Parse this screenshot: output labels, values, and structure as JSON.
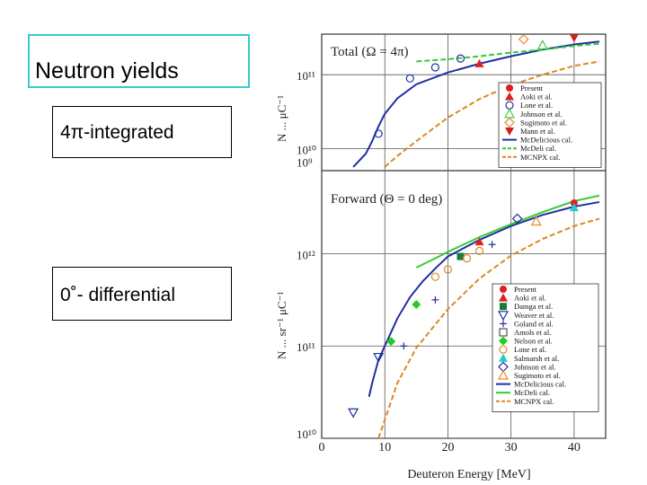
{
  "slide": {
    "title": "Neutron yields",
    "subtitle_top": "4π-integrated",
    "subtitle_bottom": "0˚- differential"
  },
  "colors": {
    "title_border": "#33cccc",
    "present": "#e02020",
    "aoki": "#e02020",
    "damga": "#1a7a3a",
    "johnson": "#44cc44",
    "sugimoto": "#ee8822",
    "mann": "#cc2222",
    "nelson": "#22cc22",
    "salmarsh": "#22cccc",
    "mcdelicious": "#1f2fa0",
    "mcdeli": "#33cc33",
    "mcnpx": "#dd8822"
  },
  "chart_data": [
    {
      "type": "line",
      "title": "Total (Ω = 4π)",
      "ylabel": "N ... μC⁻¹",
      "xlim": [
        0,
        45
      ],
      "ylim_log10": [
        9.7,
        11.55
      ],
      "y_tick_labels": [
        "10¹¹",
        "10¹⁰"
      ],
      "x_tick_labels": [
        "0",
        "10",
        "20",
        "30",
        "40"
      ],
      "legend_position": "right",
      "legend": [
        "Present",
        "Aoki et al.",
        "Lone et al.",
        "Johnson et al.",
        "Sugimoto et al.",
        "Mann et al.",
        "McDelicious cal.",
        "McDeli cal.",
        "MCNPX cal."
      ],
      "series": [
        {
          "name": "McDelicious cal.",
          "style": "solid",
          "color_key": "mcdelicious",
          "x": [
            5,
            7,
            8,
            9,
            10,
            12,
            15,
            20,
            25,
            30,
            35,
            40,
            44
          ],
          "y": [
            9.75,
            9.93,
            10.1,
            10.3,
            10.47,
            10.68,
            10.87,
            11.03,
            11.15,
            11.25,
            11.34,
            11.41,
            11.45
          ]
        },
        {
          "name": "McDeli cal.",
          "style": "dashed",
          "color_key": "mcdeli",
          "x": [
            15,
            20,
            25,
            30,
            35,
            40,
            44
          ],
          "y": [
            11.18,
            11.21,
            11.25,
            11.3,
            11.34,
            11.39,
            11.42
          ]
        },
        {
          "name": "MCNPX cal.",
          "style": "dashed",
          "color_key": "mcnpx",
          "x": [
            10,
            12,
            15,
            20,
            25,
            30,
            35,
            40,
            44
          ],
          "y": [
            9.75,
            9.9,
            10.1,
            10.42,
            10.67,
            10.86,
            11.0,
            11.12,
            11.18
          ]
        }
      ],
      "markers": [
        {
          "name": "Aoki et al.",
          "shape": "triangle",
          "color_key": "aoki",
          "x": [
            25
          ],
          "y": [
            11.15
          ]
        },
        {
          "name": "Lone et al.",
          "shape": "circle-open",
          "color_key": "mcdelicious",
          "x": [
            9,
            14,
            18,
            22
          ],
          "y": [
            10.2,
            10.95,
            11.1,
            11.22
          ]
        },
        {
          "name": "Johnson et al.",
          "shape": "triangle-open",
          "color_key": "johnson",
          "x": [
            35
          ],
          "y": [
            11.4
          ]
        },
        {
          "name": "Sugimoto et al.",
          "shape": "diamond-open",
          "color_key": "sugimoto",
          "x": [
            32
          ],
          "y": [
            11.48
          ]
        },
        {
          "name": "Mann et al.",
          "shape": "triangle-down",
          "color_key": "mann",
          "x": [
            40
          ],
          "y": [
            11.5
          ]
        }
      ]
    },
    {
      "type": "line",
      "title": "Forward (Θ = 0 deg)",
      "ylabel": "N ... sr⁻¹ μC⁻¹",
      "xlabel": "Deuteron Energy [MeV]",
      "xlim": [
        0,
        45
      ],
      "ylim_log10": [
        9,
        11.9
      ],
      "y_tick_labels": [
        "10¹²",
        "10¹¹",
        "10¹⁰",
        "10⁹"
      ],
      "x_tick_labels": [
        "0",
        "10",
        "20",
        "30",
        "40"
      ],
      "legend_position": "bottom-right",
      "legend": [
        "Present",
        "Aoki et al.",
        "Damga et al.",
        "Weaver et al.",
        "Goland et al.",
        "Amols et al.",
        "Nelson et al.",
        "Lone et al.",
        "Salmarsh et al.",
        "Johnson et al.",
        "Sugimoto et al.",
        "McDelicious cal.",
        "McDeli cal.",
        "MCNPX cal."
      ],
      "series": [
        {
          "name": "McDelicious cal.",
          "style": "solid",
          "color_key": "mcdelicious",
          "x": [
            7.5,
            8,
            9,
            10,
            12,
            14,
            16,
            18,
            20,
            25,
            30,
            35,
            40,
            44
          ],
          "y": [
            9.45,
            9.6,
            9.85,
            10.0,
            10.3,
            10.53,
            10.7,
            10.84,
            10.97,
            11.15,
            11.3,
            11.42,
            11.51,
            11.56
          ]
        },
        {
          "name": "McDeli cal.",
          "style": "solid",
          "color_key": "mcdeli",
          "x": [
            15,
            18,
            20,
            25,
            30,
            35,
            40,
            44
          ],
          "y": [
            10.85,
            10.95,
            11.02,
            11.18,
            11.32,
            11.45,
            11.57,
            11.63
          ]
        },
        {
          "name": "MCNPX cal.",
          "style": "dashed",
          "color_key": "mcnpx",
          "x": [
            9,
            10,
            12,
            15,
            20,
            25,
            30,
            35,
            40,
            44
          ],
          "y": [
            9.0,
            9.2,
            9.6,
            9.98,
            10.4,
            10.73,
            10.98,
            11.16,
            11.3,
            11.38
          ]
        }
      ],
      "markers": [
        {
          "name": "Present",
          "shape": "circle",
          "color_key": "present",
          "x": [
            40
          ],
          "y": [
            11.55
          ]
        },
        {
          "name": "Aoki et al.",
          "shape": "triangle",
          "color_key": "aoki",
          "x": [
            25
          ],
          "y": [
            11.13
          ]
        },
        {
          "name": "Damga et al.",
          "shape": "square",
          "color_key": "damga",
          "x": [
            22
          ],
          "y": [
            10.97
          ]
        },
        {
          "name": "Weaver et al.",
          "shape": "triangle-down-open",
          "color_key": "mcdelicious",
          "x": [
            5,
            9
          ],
          "y": [
            9.28,
            9.88
          ]
        },
        {
          "name": "Goland et al.",
          "shape": "plus",
          "color_key": "mcdelicious",
          "x": [
            13,
            18,
            27
          ],
          "y": [
            10.0,
            10.5,
            11.1
          ]
        },
        {
          "name": "Nelson et al.",
          "shape": "diamond",
          "color_key": "nelson",
          "x": [
            11,
            15
          ],
          "y": [
            10.05,
            10.45
          ]
        },
        {
          "name": "Lone et al.",
          "shape": "circle-open",
          "color_key": "mcnpx",
          "x": [
            18,
            20,
            23,
            25
          ],
          "y": [
            10.75,
            10.83,
            10.95,
            11.03
          ]
        },
        {
          "name": "Salmarsh et al.",
          "shape": "triangle",
          "color_key": "salmarsh",
          "x": [
            40
          ],
          "y": [
            11.5
          ]
        },
        {
          "name": "Johnson et al.",
          "shape": "diamond-open",
          "color_key": "mcdelicious",
          "x": [
            31
          ],
          "y": [
            11.38
          ]
        },
        {
          "name": "Sugimoto et al.",
          "shape": "triangle-open",
          "color_key": "sugimoto",
          "x": [
            34
          ],
          "y": [
            11.35
          ]
        }
      ]
    }
  ]
}
